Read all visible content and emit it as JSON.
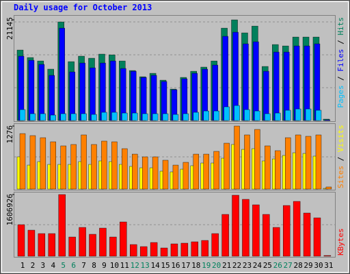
{
  "title": "Daily usage for October 2013",
  "legend_separator": " / ",
  "chart_data": [
    {
      "type": "bar",
      "ylim": [
        0,
        21145
      ],
      "yticks": [
        21145
      ],
      "series": [
        {
          "name": "Hits",
          "color": "#00805c",
          "values": [
            14810,
            13230,
            12510,
            10790,
            20710,
            12370,
            13520,
            13090,
            13950,
            13800,
            12510,
            10500,
            9200,
            9920,
            8480,
            6610,
            9060,
            10350,
            11220,
            12510,
            19410,
            21145,
            18410,
            19840,
            11360,
            15960,
            15670,
            17540,
            17540,
            17540,
            290
          ]
        },
        {
          "name": "Files",
          "color": "#0000ff",
          "values": [
            13520,
            12650,
            11790,
            9490,
            19410,
            10210,
            12080,
            11070,
            12080,
            12510,
            10930,
            10350,
            9060,
            9490,
            8200,
            6470,
            8770,
            9920,
            10790,
            11650,
            17690,
            18550,
            16110,
            16540,
            10350,
            14380,
            14380,
            15670,
            15670,
            16110,
            140
          ]
        },
        {
          "name": "Pages",
          "color": "#00c0ff",
          "values": [
            2300,
            1440,
            1440,
            1150,
            1440,
            1440,
            1440,
            1290,
            1730,
            1730,
            1580,
            1580,
            1440,
            1440,
            1440,
            1290,
            1440,
            1730,
            2010,
            2010,
            2880,
            3160,
            2300,
            2010,
            1440,
            1580,
            2160,
            2440,
            2440,
            2160,
            0
          ]
        }
      ]
    },
    {
      "type": "bar",
      "ylim": [
        0,
        1276
      ],
      "yticks": [
        1276
      ],
      "series": [
        {
          "name": "Visits",
          "color": "#ffff00",
          "values": [
            652,
            485,
            555,
            499,
            499,
            499,
            555,
            499,
            569,
            555,
            499,
            458,
            430,
            430,
            361,
            347,
            402,
            472,
            527,
            527,
            624,
            902,
            804,
            818,
            569,
            610,
            680,
            735,
            721,
            666,
            14
          ]
        },
        {
          "name": "Sites",
          "color": "#ff8000",
          "values": [
            1123,
            1082,
            1040,
            957,
            874,
            902,
            1096,
            902,
            971,
            957,
            818,
            707,
            652,
            652,
            583,
            485,
            541,
            707,
            707,
            763,
            929,
            1276,
            1096,
            1207,
            874,
            777,
            1040,
            1096,
            1068,
            1096,
            42
          ]
        }
      ]
    },
    {
      "type": "bar",
      "ylim": [
        0,
        1606926
      ],
      "yticks": [
        1606926
      ],
      "categories": [
        1,
        2,
        3,
        4,
        5,
        6,
        7,
        8,
        9,
        10,
        11,
        12,
        13,
        14,
        15,
        16,
        17,
        18,
        19,
        20,
        21,
        22,
        23,
        24,
        25,
        26,
        27,
        28,
        29,
        30,
        31
      ],
      "category_colors": [
        "#000000",
        "#000000",
        "#000000",
        "#000000",
        "#00805c",
        "#00805c",
        "#000000",
        "#000000",
        "#000000",
        "#000000",
        "#000000",
        "#00805c",
        "#00805c",
        "#000000",
        "#000000",
        "#000000",
        "#000000",
        "#000000",
        "#00805c",
        "#00805c",
        "#000000",
        "#000000",
        "#000000",
        "#000000",
        "#000000",
        "#00805c",
        "#00805c",
        "#000000",
        "#000000",
        "#000000",
        "#000000"
      ],
      "series": [
        {
          "name": "KBytes",
          "color": "#ff0000",
          "values": [
            821330,
            678490,
            589220,
            589220,
            1606926,
            499940,
            749910,
            571360,
            732060,
            499940,
            892750,
            303540,
            249970,
            357100,
            214260,
            321390,
            339250,
            374960,
            410670,
            589220,
            1089160,
            1589100,
            1481970,
            1339130,
            1089160,
            749910,
            1321270,
            1428400,
            1124870,
            999880,
            17855
          ]
        }
      ]
    }
  ]
}
